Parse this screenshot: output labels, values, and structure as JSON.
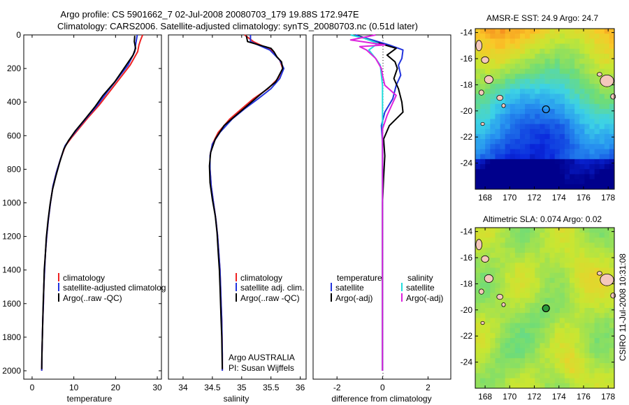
{
  "header": {
    "title_line1": "Argo profile: CS 5901662_7 02-Jul-2008 20080703_179 19.88S 172.947E",
    "title_line2": "Climatology: CARS2006. Satellite-adjusted climatology: synTS_20080703.nc (0.51d later)"
  },
  "side_label": "CSIRO 11-Jul-2008 10:31:08",
  "colors": {
    "climatology": "#ee2222",
    "satellite": "#2233dd",
    "argo": "#000000",
    "salinity_satellite": "#22dddd",
    "salinity_argo": "#dd22dd",
    "land": "#f4c8bc"
  },
  "chart_data": [
    {
      "type": "line",
      "name": "temperature",
      "xlabel": "temperature",
      "ylabel": "",
      "xlim": [
        -2,
        31
      ],
      "ylim": [
        2050,
        0
      ],
      "xticks": [
        0,
        10,
        20,
        30
      ],
      "yticks": [
        0,
        200,
        400,
        600,
        800,
        1000,
        1200,
        1400,
        1600,
        1800,
        2000
      ],
      "legend": [
        "climatology",
        "satellite-adjusted climatolog",
        "Argo(..raw -QC)"
      ],
      "series": [
        {
          "name": "climatology",
          "color": "#ee2222",
          "points": [
            [
              26.5,
              0
            ],
            [
              26.0,
              30
            ],
            [
              25.6,
              60
            ],
            [
              25.3,
              100
            ],
            [
              23.5,
              180
            ],
            [
              21.0,
              260
            ],
            [
              18.5,
              340
            ],
            [
              16.0,
              420
            ],
            [
              13.5,
              490
            ],
            [
              11.5,
              550
            ],
            [
              9.5,
              610
            ],
            [
              8.0,
              660
            ],
            [
              6.8,
              740
            ],
            [
              5.8,
              820
            ],
            [
              5.0,
              900
            ],
            [
              4.4,
              1000
            ],
            [
              3.9,
              1100
            ],
            [
              3.5,
              1200
            ],
            [
              3.2,
              1300
            ],
            [
              3.0,
              1400
            ],
            [
              2.8,
              1500
            ],
            [
              2.7,
              1600
            ],
            [
              2.55,
              1700
            ],
            [
              2.45,
              1800
            ],
            [
              2.35,
              1900
            ],
            [
              2.3,
              2000
            ]
          ]
        },
        {
          "name": "satellite-adjusted climatology",
          "color": "#2233dd",
          "points": [
            [
              25.2,
              0
            ],
            [
              25.0,
              30
            ],
            [
              24.8,
              60
            ],
            [
              24.6,
              100
            ],
            [
              23.0,
              180
            ],
            [
              20.5,
              260
            ],
            [
              18.0,
              340
            ],
            [
              15.6,
              420
            ],
            [
              13.2,
              490
            ],
            [
              11.2,
              550
            ],
            [
              9.3,
              610
            ],
            [
              7.9,
              660
            ],
            [
              6.8,
              740
            ],
            [
              5.8,
              820
            ],
            [
              5.0,
              900
            ],
            [
              4.4,
              1000
            ],
            [
              3.9,
              1100
            ],
            [
              3.5,
              1200
            ],
            [
              3.2,
              1300
            ],
            [
              3.0,
              1400
            ],
            [
              2.8,
              1500
            ],
            [
              2.7,
              1600
            ],
            [
              2.55,
              1700
            ],
            [
              2.45,
              1800
            ],
            [
              2.35,
              1900
            ],
            [
              2.3,
              2000
            ]
          ]
        },
        {
          "name": "Argo(..raw -QC)",
          "color": "#000000",
          "points": [
            [
              24.6,
              5
            ],
            [
              24.5,
              40
            ],
            [
              24.8,
              80
            ],
            [
              24.2,
              120
            ],
            [
              22.0,
              200
            ],
            [
              19.8,
              280
            ],
            [
              17.0,
              360
            ],
            [
              15.0,
              430
            ],
            [
              12.4,
              510
            ],
            [
              10.4,
              570
            ],
            [
              8.7,
              630
            ],
            [
              7.6,
              680
            ],
            [
              6.6,
              760
            ],
            [
              5.7,
              840
            ],
            [
              4.9,
              920
            ],
            [
              4.3,
              1010
            ],
            [
              3.8,
              1110
            ],
            [
              3.4,
              1210
            ],
            [
              3.2,
              1300
            ],
            [
              2.9,
              1400
            ],
            [
              2.8,
              1500
            ],
            [
              2.65,
              1600
            ],
            [
              2.55,
              1700
            ],
            [
              2.45,
              1800
            ],
            [
              2.35,
              1900
            ],
            [
              2.3,
              1990
            ]
          ]
        }
      ]
    },
    {
      "type": "line",
      "name": "salinity",
      "xlabel": "salinity",
      "xlim": [
        33.75,
        36.1
      ],
      "ylim": [
        2050,
        0
      ],
      "xticks": [
        34,
        34.5,
        35,
        35.5,
        36
      ],
      "xticklabels": [
        "34",
        "34.5",
        "35",
        "35.5",
        "36"
      ],
      "legend": [
        "climatology",
        "satellite adj. clim.",
        "Argo(..raw -QC)"
      ],
      "annotation_lines": [
        "Argo AUSTRALIA",
        "PI: Susan Wijffels"
      ],
      "series": [
        {
          "name": "climatology",
          "color": "#ee2222",
          "points": [
            [
              35.05,
              0
            ],
            [
              35.2,
              40
            ],
            [
              35.5,
              90
            ],
            [
              35.65,
              150
            ],
            [
              35.7,
              200
            ],
            [
              35.62,
              260
            ],
            [
              35.45,
              320
            ],
            [
              35.2,
              380
            ],
            [
              35.0,
              440
            ],
            [
              34.8,
              500
            ],
            [
              34.6,
              580
            ],
            [
              34.5,
              650
            ],
            [
              34.46,
              720
            ],
            [
              34.46,
              800
            ],
            [
              34.48,
              900
            ],
            [
              34.52,
              1000
            ],
            [
              34.56,
              1100
            ],
            [
              34.59,
              1200
            ],
            [
              34.61,
              1300
            ],
            [
              34.63,
              1400
            ],
            [
              34.64,
              1500
            ],
            [
              34.65,
              1600
            ],
            [
              34.66,
              1700
            ],
            [
              34.665,
              1800
            ],
            [
              34.67,
              1900
            ],
            [
              34.67,
              2000
            ]
          ]
        },
        {
          "name": "satellite adj. clim.",
          "color": "#2233dd",
          "points": [
            [
              35.15,
              0
            ],
            [
              35.15,
              40
            ],
            [
              35.48,
              90
            ],
            [
              35.65,
              150
            ],
            [
              35.72,
              200
            ],
            [
              35.65,
              260
            ],
            [
              35.5,
              320
            ],
            [
              35.28,
              380
            ],
            [
              35.05,
              440
            ],
            [
              34.84,
              500
            ],
            [
              34.63,
              580
            ],
            [
              34.5,
              650
            ],
            [
              34.46,
              720
            ],
            [
              34.46,
              800
            ],
            [
              34.48,
              900
            ],
            [
              34.52,
              1000
            ],
            [
              34.56,
              1100
            ],
            [
              34.59,
              1200
            ],
            [
              34.61,
              1300
            ],
            [
              34.63,
              1400
            ],
            [
              34.64,
              1500
            ],
            [
              34.65,
              1600
            ],
            [
              34.66,
              1700
            ],
            [
              34.665,
              1800
            ],
            [
              34.67,
              1900
            ],
            [
              34.67,
              2000
            ]
          ]
        },
        {
          "name": "Argo(..raw -QC)",
          "color": "#000000",
          "points": [
            [
              35.08,
              5
            ],
            [
              35.1,
              40
            ],
            [
              35.3,
              60
            ],
            [
              35.5,
              80
            ],
            [
              35.55,
              100
            ],
            [
              35.6,
              130
            ],
            [
              35.68,
              160
            ],
            [
              35.7,
              200
            ],
            [
              35.58,
              280
            ],
            [
              35.3,
              360
            ],
            [
              35.1,
              420
            ],
            [
              34.9,
              480
            ],
            [
              34.7,
              540
            ],
            [
              34.55,
              620
            ],
            [
              34.47,
              700
            ],
            [
              34.45,
              780
            ],
            [
              34.46,
              880
            ],
            [
              34.5,
              980
            ],
            [
              34.55,
              1080
            ],
            [
              34.58,
              1180
            ],
            [
              34.6,
              1300
            ],
            [
              34.62,
              1400
            ],
            [
              34.63,
              1500
            ],
            [
              34.64,
              1600
            ],
            [
              34.65,
              1700
            ],
            [
              34.66,
              1800
            ],
            [
              34.665,
              1900
            ],
            [
              34.67,
              1990
            ]
          ]
        }
      ]
    },
    {
      "type": "line",
      "name": "difference",
      "xlabel": "difference from climatology",
      "xlim": [
        -3.05,
        3.0
      ],
      "ylim": [
        2050,
        0
      ],
      "xticks": [
        -2,
        0,
        2
      ],
      "legend_left_heading": "temperature",
      "legend_right_heading": "salinity",
      "legend_left": [
        "satellite",
        "Argo(-adj)"
      ],
      "legend_right": [
        "satellite",
        "Argo(-adj)"
      ],
      "series": [
        {
          "name": "temperature satellite",
          "color": "#2233dd",
          "points": [
            [
              -1.2,
              0
            ],
            [
              -0.7,
              20
            ],
            [
              0.3,
              60
            ],
            [
              0.9,
              90
            ],
            [
              0.85,
              140
            ],
            [
              0.7,
              180
            ],
            [
              0.8,
              240
            ],
            [
              0.6,
              300
            ],
            [
              0.45,
              380
            ],
            [
              0.1,
              460
            ],
            [
              -0.05,
              540
            ],
            [
              0.0,
              640
            ],
            [
              0.0,
              760
            ],
            [
              0.0,
              1000
            ],
            [
              0.0,
              1500
            ],
            [
              0.0,
              2000
            ]
          ]
        },
        {
          "name": "temperature Argo(-adj)",
          "color": "#000000",
          "points": [
            [
              -1.0,
              10
            ],
            [
              -0.4,
              40
            ],
            [
              0.6,
              80
            ],
            [
              0.2,
              120
            ],
            [
              0.55,
              160
            ],
            [
              0.65,
              200
            ],
            [
              0.5,
              260
            ],
            [
              0.7,
              320
            ],
            [
              0.85,
              400
            ],
            [
              0.9,
              460
            ],
            [
              0.3,
              540
            ],
            [
              0.05,
              620
            ],
            [
              0.1,
              720
            ],
            [
              0.05,
              850
            ],
            [
              0.0,
              1000
            ],
            [
              0.0,
              1500
            ],
            [
              0.0,
              2000
            ]
          ]
        },
        {
          "name": "salinity satellite",
          "color": "#22dddd",
          "points": [
            [
              -1.4,
              0
            ],
            [
              -0.8,
              20
            ],
            [
              -0.2,
              50
            ],
            [
              -0.6,
              90
            ],
            [
              -0.3,
              140
            ],
            [
              -0.1,
              180
            ],
            [
              -0.05,
              240
            ],
            [
              0.0,
              300
            ],
            [
              0.0,
              400
            ],
            [
              0.0,
              600
            ],
            [
              0.0,
              1000
            ],
            [
              0.0,
              2000
            ]
          ]
        },
        {
          "name": "salinity Argo(-adj)",
          "color": "#dd22dd",
          "points": [
            [
              -0.3,
              0
            ],
            [
              -1.4,
              30
            ],
            [
              0.1,
              60
            ],
            [
              -1.0,
              70
            ],
            [
              -0.7,
              90
            ],
            [
              -0.3,
              140
            ],
            [
              -0.05,
              200
            ],
            [
              0.0,
              240
            ],
            [
              0.1,
              300
            ],
            [
              0.6,
              360
            ],
            [
              0.4,
              420
            ],
            [
              0.2,
              480
            ],
            [
              0.0,
              560
            ],
            [
              0.0,
              640
            ],
            [
              0.0,
              800
            ],
            [
              0.0,
              1200
            ],
            [
              0.0,
              2000
            ]
          ]
        }
      ]
    },
    {
      "type": "heatmap",
      "name": "sst-map",
      "title": "AMSR-E SST: 24.9 Argo: 24.7",
      "xlim": [
        167.2,
        178.5
      ],
      "ylim": [
        -26,
        -13.7
      ],
      "xticks": [
        168,
        170,
        172,
        174,
        176,
        178
      ],
      "yticks": [
        -14,
        -16,
        -18,
        -20,
        -22,
        -24
      ],
      "ytick_labels": [
        "-14",
        "-16",
        "-18",
        "-20",
        "-22",
        "-24"
      ],
      "marker": {
        "lon": 172.947,
        "lat": -19.88
      }
    },
    {
      "type": "heatmap",
      "name": "sla-map",
      "title": "Altimetric SLA: 0.074 Argo: 0.02",
      "xlim": [
        167.2,
        178.5
      ],
      "ylim": [
        -26,
        -13.7
      ],
      "xticks": [
        168,
        170,
        172,
        174,
        176,
        178
      ],
      "yticks": [
        -14,
        -16,
        -18,
        -20,
        -22,
        -24
      ],
      "ytick_labels": [
        "-14",
        "-16",
        "-18",
        "-20",
        "-22",
        "-24"
      ],
      "marker": {
        "lon": 172.947,
        "lat": -19.88
      }
    }
  ]
}
